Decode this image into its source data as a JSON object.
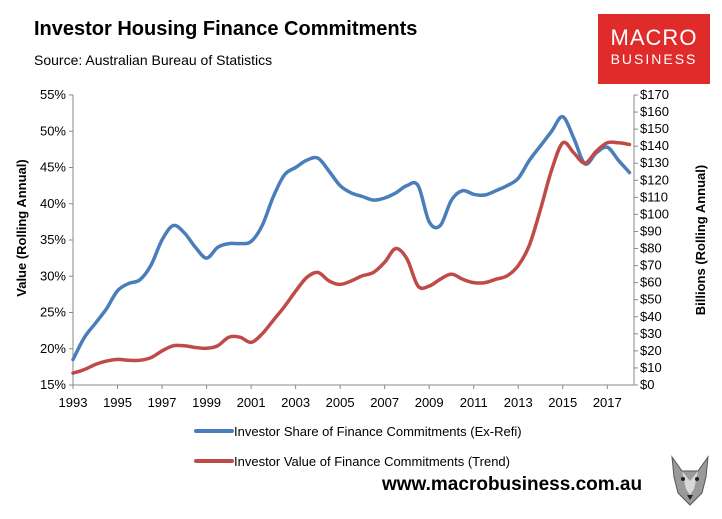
{
  "header": {
    "title": "Investor Housing Finance Commitments",
    "source": "Source: Australian Bureau of Statistics"
  },
  "logo": {
    "line1": "MACRO",
    "line2": "BUSINESS"
  },
  "footer": {
    "website": "www.macrobusiness.com.au"
  },
  "colors": {
    "series1": "#4a7ebb",
    "series2": "#be4b48",
    "axis": "#888888",
    "logo_bg": "#e02b2b"
  },
  "chart_data": {
    "type": "line",
    "title": "Investor Housing Finance Commitments",
    "xlabel": "",
    "ylabel": "Value (Rolling Annual)",
    "y2label": "Billions (Rolling Annual)",
    "xlim": [
      1993,
      2018.2
    ],
    "ylim": [
      15,
      55
    ],
    "y2lim": [
      0,
      170
    ],
    "grid": false,
    "legend": "bottom",
    "x_ticks": [
      "1993",
      "1995",
      "1997",
      "1999",
      "2001",
      "2003",
      "2005",
      "2007",
      "2009",
      "2011",
      "2013",
      "2015",
      "2017"
    ],
    "y_ticks": [
      "15%",
      "20%",
      "25%",
      "30%",
      "35%",
      "40%",
      "45%",
      "50%",
      "55%"
    ],
    "y2_ticks": [
      "$0",
      "$10",
      "$20",
      "$30",
      "$40",
      "$50",
      "$60",
      "$70",
      "$80",
      "$90",
      "$100",
      "$110",
      "$120",
      "$130",
      "$140",
      "$150",
      "$160",
      "$170"
    ],
    "series": [
      {
        "name": "Investor Share of Finance Commitments (Ex-Refi)",
        "axis": "left",
        "x": [
          1993.0,
          1993.5,
          1994.0,
          1994.5,
          1995.0,
          1995.5,
          1996.0,
          1996.5,
          1997.0,
          1997.5,
          1998.0,
          1998.5,
          1999.0,
          1999.5,
          2000.0,
          2000.5,
          2001.0,
          2001.5,
          2002.0,
          2002.5,
          2003.0,
          2003.5,
          2004.0,
          2004.5,
          2005.0,
          2005.5,
          2006.0,
          2006.5,
          2007.0,
          2007.5,
          2008.0,
          2008.5,
          2009.0,
          2009.5,
          2010.0,
          2010.5,
          2011.0,
          2011.5,
          2012.0,
          2012.5,
          2013.0,
          2013.5,
          2014.0,
          2014.5,
          2015.0,
          2015.5,
          2016.0,
          2016.5,
          2017.0,
          2017.5,
          2018.0
        ],
        "values": [
          18.5,
          21.5,
          23.5,
          25.5,
          28.0,
          29.0,
          29.5,
          31.5,
          35.0,
          37.0,
          36.0,
          34.0,
          32.5,
          34.0,
          34.5,
          34.5,
          34.8,
          37.0,
          41.0,
          44.0,
          45.0,
          46.0,
          46.3,
          44.5,
          42.5,
          41.5,
          41.0,
          40.5,
          40.8,
          41.5,
          42.5,
          42.5,
          37.5,
          37.0,
          40.5,
          41.8,
          41.3,
          41.2,
          41.8,
          42.5,
          43.5,
          46.0,
          48.0,
          50.0,
          52.0,
          49.0,
          45.5,
          47.0,
          47.8,
          46.0,
          44.3
        ]
      },
      {
        "name": "Investor Value of Finance Commitments (Trend)",
        "axis": "right",
        "x": [
          1993.0,
          1993.5,
          1994.0,
          1994.5,
          1995.0,
          1995.5,
          1996.0,
          1996.5,
          1997.0,
          1997.5,
          1998.0,
          1998.5,
          1999.0,
          1999.5,
          2000.0,
          2000.5,
          2001.0,
          2001.5,
          2002.0,
          2002.5,
          2003.0,
          2003.5,
          2004.0,
          2004.5,
          2005.0,
          2005.5,
          2006.0,
          2006.5,
          2007.0,
          2007.5,
          2008.0,
          2008.5,
          2009.0,
          2009.5,
          2010.0,
          2010.5,
          2011.0,
          2011.5,
          2012.0,
          2012.5,
          2013.0,
          2013.5,
          2014.0,
          2014.5,
          2015.0,
          2015.5,
          2016.0,
          2016.5,
          2017.0,
          2017.5,
          2018.0
        ],
        "values": [
          7,
          9,
          12,
          14,
          15,
          14.5,
          14.5,
          16,
          20,
          23,
          23,
          22,
          21.5,
          23,
          28,
          28,
          25,
          30,
          38,
          46,
          55,
          63,
          66,
          61,
          59,
          61,
          64,
          66,
          72,
          80,
          74,
          58,
          58,
          62,
          65,
          62,
          60,
          60,
          62,
          64,
          70,
          82,
          103,
          126,
          142,
          136,
          130,
          137,
          142,
          142,
          141
        ]
      }
    ]
  }
}
